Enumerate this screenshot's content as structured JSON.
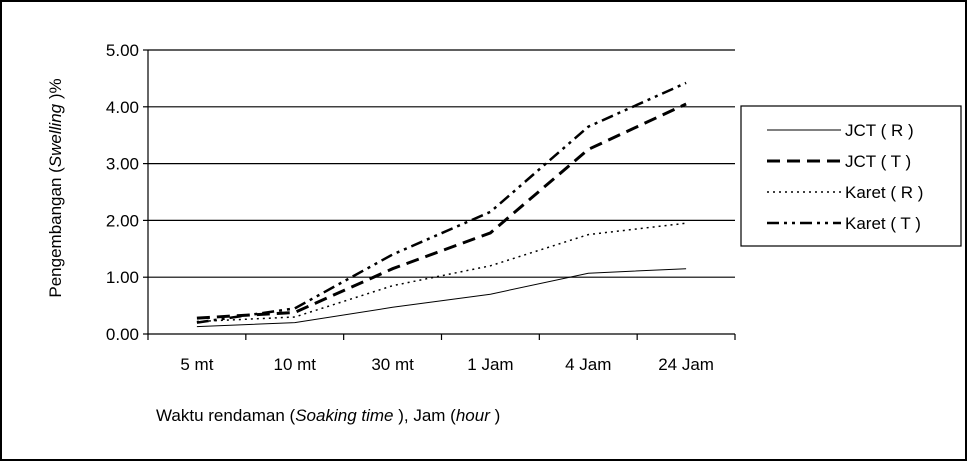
{
  "chart_data": {
    "type": "line",
    "title": "",
    "xlabel": "Waktu rendaman (Soaking time ), Jam (hour )",
    "xlabel_parts": [
      {
        "text": "Waktu rendaman (",
        "italic": false
      },
      {
        "text": "Soaking time",
        "italic": true
      },
      {
        "text": " ), Jam (",
        "italic": false
      },
      {
        "text": "hour",
        "italic": true
      },
      {
        "text": " )",
        "italic": false
      }
    ],
    "ylabel": "Pengembangan (Swelling )%",
    "ylabel_parts": [
      {
        "text": "Pengembangan (",
        "italic": false
      },
      {
        "text": "Swelling",
        "italic": true
      },
      {
        "text": " )%",
        "italic": false
      }
    ],
    "categories": [
      "5 mt",
      "10 mt",
      "30 mt",
      "1 Jam",
      "4 Jam",
      "24 Jam"
    ],
    "y_ticks": [
      "0.00",
      "1.00",
      "2.00",
      "3.00",
      "4.00",
      "5.00"
    ],
    "ylim": [
      0,
      5
    ],
    "grid": true,
    "legend_position": "right",
    "series": [
      {
        "name": "JCT ( R )",
        "dash": "solid",
        "width": 1,
        "values": [
          0.13,
          0.2,
          0.47,
          0.7,
          1.07,
          1.15
        ]
      },
      {
        "name": "JCT ( T )",
        "dash": "dashed",
        "width": 3,
        "values": [
          0.28,
          0.38,
          1.15,
          1.78,
          3.25,
          4.05
        ]
      },
      {
        "name": "Karet ( R )",
        "dash": "dotted",
        "width": 1.5,
        "values": [
          0.22,
          0.3,
          0.85,
          1.2,
          1.75,
          1.95
        ]
      },
      {
        "name": "Karet ( T )",
        "dash": "dashdotdot",
        "width": 2.5,
        "values": [
          0.2,
          0.45,
          1.4,
          2.15,
          3.65,
          4.42
        ]
      }
    ]
  }
}
